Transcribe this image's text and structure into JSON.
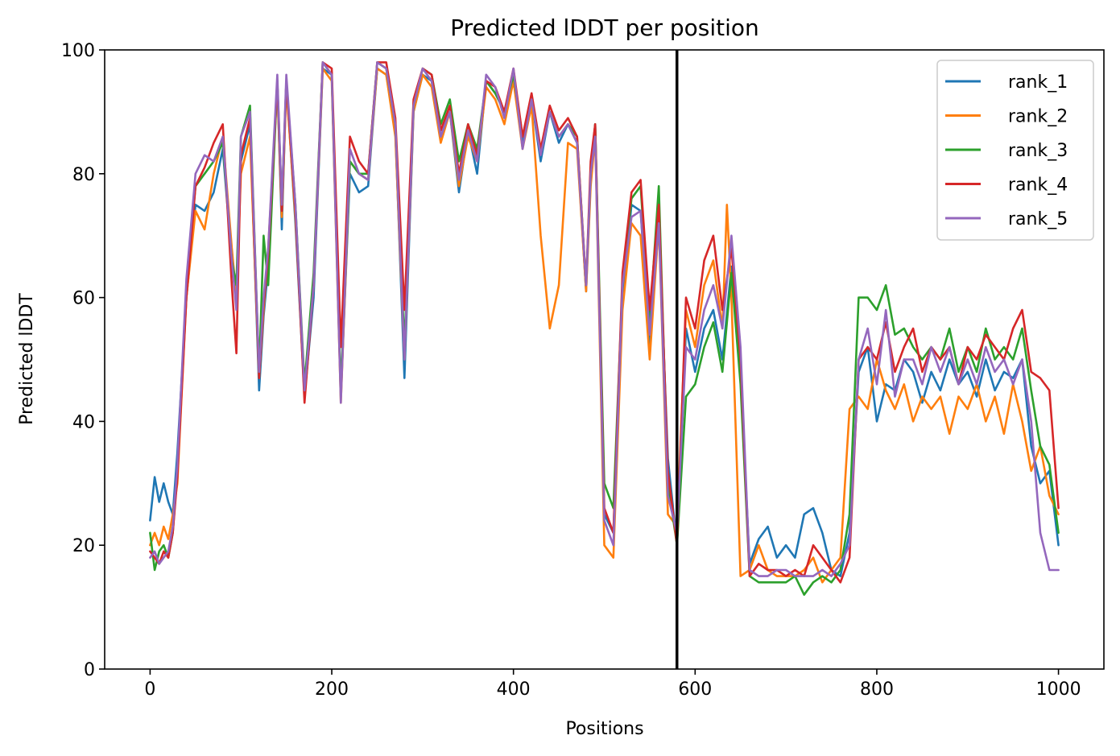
{
  "chart_data": {
    "type": "line",
    "title": "Predicted lDDT per position",
    "xlabel": "Positions",
    "ylabel": "Predicted lDDT",
    "xlim": [
      -50,
      1050
    ],
    "ylim": [
      0,
      100
    ],
    "xticks": [
      0,
      200,
      400,
      600,
      800,
      1000
    ],
    "yticks": [
      0,
      20,
      40,
      60,
      80,
      100
    ],
    "grid": false,
    "legend_position": "top-right",
    "vertical_line_x": 580,
    "series": [
      {
        "name": "rank_1",
        "color": "#1f77b4",
        "x": [
          0,
          5,
          10,
          15,
          20,
          25,
          30,
          40,
          50,
          60,
          70,
          80,
          90,
          95,
          100,
          110,
          120,
          125,
          130,
          140,
          145,
          150,
          160,
          170,
          180,
          190,
          200,
          210,
          220,
          230,
          240,
          250,
          260,
          270,
          280,
          290,
          300,
          310,
          320,
          330,
          340,
          350,
          360,
          370,
          380,
          390,
          400,
          410,
          420,
          430,
          440,
          450,
          460,
          470,
          480,
          485,
          490,
          500,
          510,
          520,
          530,
          540,
          550,
          560,
          570,
          580,
          590,
          600,
          610,
          620,
          630,
          640,
          650,
          660,
          670,
          680,
          690,
          700,
          710,
          720,
          730,
          740,
          750,
          760,
          770,
          780,
          790,
          800,
          810,
          820,
          830,
          840,
          850,
          860,
          870,
          880,
          890,
          900,
          910,
          920,
          930,
          940,
          950,
          960,
          970,
          980,
          990,
          1000
        ],
        "values": [
          24,
          31,
          27,
          30,
          27,
          25,
          35,
          60,
          75,
          74,
          77,
          84,
          66,
          60,
          82,
          88,
          45,
          57,
          65,
          95,
          71,
          95,
          72,
          44,
          60,
          97,
          96,
          44,
          80,
          77,
          78,
          97,
          96,
          87,
          47,
          90,
          96,
          95,
          86,
          90,
          77,
          87,
          80,
          95,
          93,
          90,
          96,
          85,
          92,
          82,
          90,
          85,
          88,
          85,
          61,
          80,
          88,
          25,
          22,
          60,
          75,
          74,
          52,
          72,
          34,
          20,
          55,
          48,
          55,
          58,
          50,
          65,
          48,
          17,
          21,
          23,
          18,
          20,
          18,
          25,
          26,
          22,
          16,
          15,
          22,
          48,
          52,
          40,
          46,
          45,
          50,
          48,
          43,
          48,
          45,
          50,
          46,
          48,
          44,
          50,
          45,
          48,
          47,
          50,
          36,
          30,
          32,
          20
        ]
      },
      {
        "name": "rank_2",
        "color": "#ff7f0e",
        "x": [
          0,
          5,
          10,
          15,
          20,
          25,
          30,
          40,
          50,
          60,
          70,
          80,
          90,
          95,
          100,
          110,
          120,
          125,
          130,
          140,
          145,
          150,
          160,
          170,
          180,
          190,
          200,
          210,
          220,
          230,
          240,
          250,
          260,
          270,
          280,
          290,
          300,
          310,
          320,
          330,
          340,
          350,
          360,
          370,
          380,
          390,
          400,
          410,
          420,
          430,
          440,
          450,
          460,
          470,
          480,
          485,
          490,
          500,
          510,
          520,
          530,
          540,
          550,
          560,
          570,
          580,
          590,
          600,
          610,
          620,
          630,
          635,
          640,
          650,
          660,
          670,
          680,
          690,
          700,
          710,
          720,
          730,
          740,
          750,
          760,
          770,
          780,
          790,
          800,
          810,
          820,
          830,
          840,
          850,
          860,
          870,
          880,
          890,
          900,
          910,
          920,
          930,
          940,
          950,
          960,
          970,
          980,
          990,
          1000
        ],
        "values": [
          20,
          22,
          20,
          23,
          21,
          25,
          30,
          60,
          74,
          71,
          80,
          86,
          68,
          60,
          80,
          86,
          47,
          58,
          68,
          94,
          73,
          94,
          73,
          45,
          62,
          97,
          95,
          43,
          82,
          80,
          79,
          97,
          96,
          86,
          50,
          90,
          96,
          94,
          85,
          90,
          78,
          86,
          82,
          94,
          92,
          88,
          95,
          84,
          91,
          70,
          55,
          62,
          85,
          84,
          61,
          78,
          86,
          20,
          18,
          58,
          72,
          70,
          50,
          72,
          25,
          23,
          58,
          52,
          62,
          66,
          55,
          75,
          60,
          15,
          16,
          20,
          16,
          15,
          15,
          15,
          16,
          18,
          14,
          16,
          18,
          42,
          44,
          42,
          50,
          45,
          42,
          46,
          40,
          44,
          42,
          44,
          38,
          44,
          42,
          46,
          40,
          44,
          38,
          46,
          40,
          32,
          36,
          28,
          25
        ]
      },
      {
        "name": "rank_3",
        "color": "#2ca02c",
        "x": [
          0,
          5,
          10,
          15,
          20,
          25,
          30,
          40,
          50,
          60,
          70,
          80,
          90,
          95,
          100,
          110,
          120,
          125,
          130,
          140,
          145,
          150,
          160,
          170,
          180,
          190,
          200,
          210,
          220,
          230,
          240,
          250,
          260,
          270,
          280,
          290,
          300,
          310,
          320,
          330,
          340,
          350,
          360,
          370,
          380,
          390,
          400,
          410,
          420,
          430,
          440,
          450,
          460,
          470,
          480,
          485,
          490,
          500,
          510,
          520,
          530,
          540,
          550,
          560,
          570,
          580,
          590,
          600,
          610,
          620,
          630,
          640,
          650,
          660,
          670,
          680,
          690,
          700,
          710,
          720,
          730,
          740,
          750,
          760,
          770,
          780,
          790,
          800,
          810,
          820,
          830,
          840,
          850,
          860,
          870,
          880,
          890,
          900,
          910,
          920,
          930,
          940,
          950,
          960,
          970,
          980,
          990,
          1000
        ],
        "values": [
          22,
          16,
          19,
          20,
          18,
          22,
          32,
          62,
          78,
          80,
          82,
          85,
          66,
          62,
          86,
          91,
          48,
          70,
          62,
          95,
          75,
          95,
          75,
          46,
          64,
          98,
          96,
          45,
          82,
          80,
          80,
          98,
          97,
          88,
          52,
          91,
          97,
          96,
          88,
          92,
          82,
          88,
          84,
          95,
          93,
          90,
          96,
          86,
          92,
          84,
          90,
          86,
          88,
          86,
          62,
          80,
          88,
          30,
          26,
          62,
          76,
          78,
          56,
          78,
          30,
          20,
          44,
          46,
          52,
          56,
          48,
          64,
          46,
          15,
          14,
          14,
          14,
          14,
          15,
          12,
          14,
          15,
          14,
          16,
          25,
          60,
          60,
          58,
          62,
          54,
          55,
          52,
          50,
          52,
          50,
          55,
          48,
          52,
          48,
          55,
          50,
          52,
          50,
          55,
          45,
          36,
          33,
          22
        ]
      },
      {
        "name": "rank_4",
        "color": "#d62728",
        "x": [
          0,
          5,
          10,
          15,
          20,
          25,
          30,
          40,
          50,
          60,
          70,
          80,
          90,
          95,
          100,
          110,
          120,
          125,
          130,
          140,
          145,
          150,
          160,
          170,
          180,
          190,
          200,
          210,
          220,
          230,
          240,
          250,
          260,
          270,
          280,
          290,
          300,
          310,
          320,
          330,
          340,
          350,
          360,
          370,
          380,
          390,
          400,
          410,
          420,
          430,
          440,
          450,
          460,
          470,
          480,
          485,
          490,
          500,
          510,
          520,
          530,
          540,
          550,
          560,
          570,
          580,
          590,
          600,
          610,
          620,
          630,
          640,
          650,
          660,
          670,
          680,
          690,
          700,
          710,
          720,
          730,
          740,
          750,
          760,
          770,
          780,
          790,
          800,
          810,
          820,
          830,
          840,
          850,
          860,
          870,
          880,
          890,
          900,
          910,
          920,
          930,
          940,
          950,
          960,
          970,
          980,
          990,
          1000
        ],
        "values": [
          19,
          18,
          17,
          19,
          18,
          22,
          31,
          60,
          78,
          81,
          85,
          88,
          62,
          51,
          83,
          89,
          47,
          59,
          67,
          95,
          74,
          95,
          74,
          43,
          62,
          98,
          97,
          52,
          86,
          82,
          80,
          98,
          98,
          89,
          58,
          92,
          97,
          96,
          87,
          91,
          80,
          88,
          83,
          95,
          94,
          90,
          97,
          86,
          93,
          84,
          91,
          87,
          89,
          86,
          62,
          82,
          88,
          26,
          22,
          64,
          77,
          79,
          58,
          75,
          32,
          20,
          60,
          55,
          66,
          70,
          58,
          68,
          50,
          15,
          17,
          16,
          16,
          15,
          16,
          15,
          20,
          18,
          16,
          14,
          18,
          50,
          52,
          50,
          56,
          48,
          52,
          55,
          48,
          52,
          50,
          52,
          46,
          52,
          50,
          54,
          52,
          50,
          55,
          58,
          48,
          47,
          45,
          26
        ]
      },
      {
        "name": "rank_5",
        "color": "#9467bd",
        "x": [
          0,
          5,
          10,
          15,
          20,
          25,
          30,
          40,
          50,
          60,
          70,
          80,
          90,
          95,
          100,
          110,
          120,
          125,
          130,
          140,
          145,
          150,
          160,
          170,
          180,
          190,
          200,
          210,
          220,
          230,
          240,
          250,
          260,
          270,
          280,
          290,
          300,
          310,
          320,
          330,
          340,
          350,
          360,
          370,
          380,
          390,
          400,
          410,
          420,
          430,
          440,
          450,
          460,
          470,
          480,
          485,
          490,
          500,
          510,
          520,
          530,
          540,
          550,
          560,
          570,
          580,
          590,
          600,
          610,
          620,
          630,
          640,
          650,
          660,
          670,
          680,
          690,
          700,
          710,
          720,
          730,
          740,
          750,
          760,
          770,
          780,
          790,
          800,
          810,
          820,
          830,
          840,
          850,
          860,
          870,
          880,
          890,
          900,
          910,
          920,
          930,
          940,
          950,
          960,
          970,
          980,
          990,
          1000
        ],
        "values": [
          18,
          19,
          17,
          18,
          19,
          23,
          33,
          63,
          80,
          83,
          82,
          86,
          66,
          58,
          86,
          90,
          48,
          60,
          68,
          96,
          75,
          96,
          75,
          45,
          62,
          98,
          96,
          43,
          84,
          80,
          79,
          98,
          97,
          88,
          50,
          91,
          97,
          95,
          86,
          90,
          79,
          87,
          82,
          96,
          94,
          89,
          97,
          84,
          92,
          83,
          90,
          86,
          88,
          85,
          62,
          80,
          86,
          24,
          20,
          62,
          73,
          74,
          54,
          72,
          28,
          22,
          52,
          50,
          58,
          62,
          55,
          70,
          52,
          16,
          15,
          15,
          16,
          16,
          15,
          15,
          15,
          16,
          15,
          17,
          20,
          50,
          55,
          46,
          58,
          44,
          50,
          50,
          46,
          52,
          48,
          52,
          46,
          50,
          46,
          52,
          48,
          50,
          46,
          50,
          40,
          22,
          16,
          16
        ]
      }
    ]
  }
}
